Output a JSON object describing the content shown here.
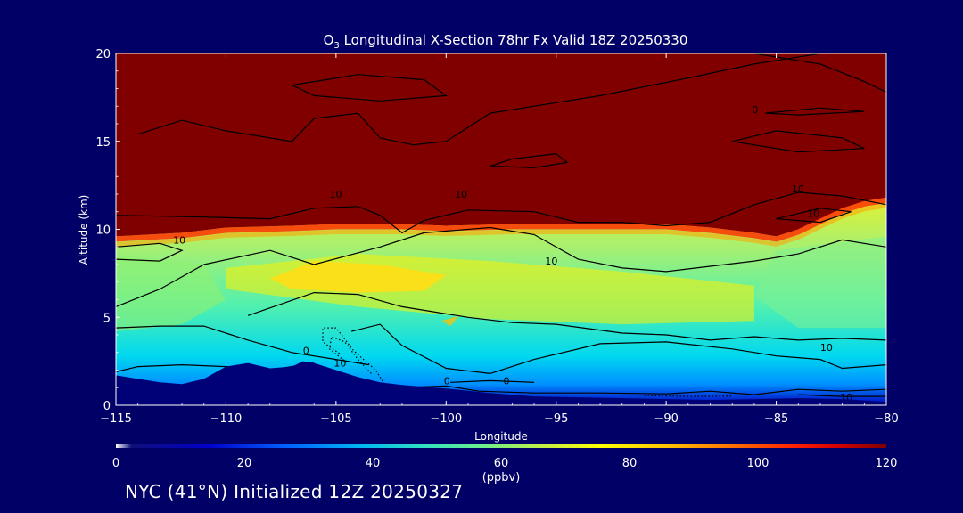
{
  "chart_data": {
    "type": "heatmap",
    "title_prefix": "O",
    "title_subscript": "3",
    "title_rest": " Longitudinal X-Section 78hr  Fx Valid 18Z 20250330",
    "xlabel": "Longitude",
    "ylabel": "Altitude (km)",
    "xlim": [
      -115,
      -80
    ],
    "ylim": [
      0,
      20
    ],
    "x_ticks": [
      -115,
      -110,
      -105,
      -100,
      -95,
      -90,
      -85,
      -80
    ],
    "x_tick_labels": [
      "−115",
      "−110",
      "−105",
      "−100",
      "−95",
      "−90",
      "−85",
      "−80"
    ],
    "y_ticks": [
      0,
      5,
      10,
      15,
      20
    ],
    "y_tick_labels": [
      "0",
      "5",
      "10",
      "15",
      "20"
    ],
    "colorbar": {
      "min": 0,
      "max": 120,
      "ticks": [
        0,
        20,
        40,
        60,
        80,
        100,
        120
      ],
      "tick_labels": [
        "0",
        "20",
        "40",
        "60",
        "80",
        "100",
        "120"
      ],
      "units": "(ppbv)"
    },
    "tropopause_height_km": [
      [
        -115,
        9.6
      ],
      [
        -112,
        9.8
      ],
      [
        -110,
        10.1
      ],
      [
        -107,
        10.2
      ],
      [
        -105,
        10.3
      ],
      [
        -102,
        10.3
      ],
      [
        -100,
        10.2
      ],
      [
        -97,
        10.3
      ],
      [
        -95,
        10.3
      ],
      [
        -92,
        10.3
      ],
      [
        -90,
        10.3
      ],
      [
        -88,
        10.1
      ],
      [
        -86,
        9.8
      ],
      [
        -85,
        9.6
      ],
      [
        -84,
        10.0
      ],
      [
        -83,
        10.6
      ],
      [
        -82,
        11.2
      ],
      [
        -81,
        11.6
      ],
      [
        -80,
        11.8
      ]
    ],
    "stratosphere_ozone_ppbv": 120,
    "terrain_height_km": [
      [
        -115,
        1.7
      ],
      [
        -114,
        1.5
      ],
      [
        -113,
        1.3
      ],
      [
        -112,
        1.2
      ],
      [
        -111,
        1.5
      ],
      [
        -110,
        2.2
      ],
      [
        -109,
        2.4
      ],
      [
        -108,
        2.1
      ],
      [
        -107,
        2.2
      ],
      [
        -106.5,
        2.5
      ],
      [
        -106,
        2.4
      ],
      [
        -105,
        2.0
      ],
      [
        -104,
        1.6
      ],
      [
        -103,
        1.3
      ],
      [
        -102,
        1.15
      ],
      [
        -100,
        0.95
      ],
      [
        -98,
        0.7
      ],
      [
        -96,
        0.5
      ],
      [
        -94,
        0.45
      ],
      [
        -92,
        0.4
      ],
      [
        -90,
        0.35
      ],
      [
        -88,
        0.3
      ],
      [
        -86,
        0.35
      ],
      [
        -84,
        0.4
      ],
      [
        -82,
        0.35
      ],
      [
        -80,
        0.2
      ]
    ],
    "contour_labels": [
      "10",
      "10",
      "10",
      "10",
      "10",
      "10",
      "0",
      "0",
      "0",
      "0",
      "10",
      "10",
      "10"
    ],
    "initialization_text": "NYC (41°N) Initialized 12Z 20250327",
    "colors": {
      "background": "#000066",
      "stratosphere": "#800000",
      "terrain": "#000077",
      "text": "#ffffff",
      "contour": "#000000"
    }
  }
}
